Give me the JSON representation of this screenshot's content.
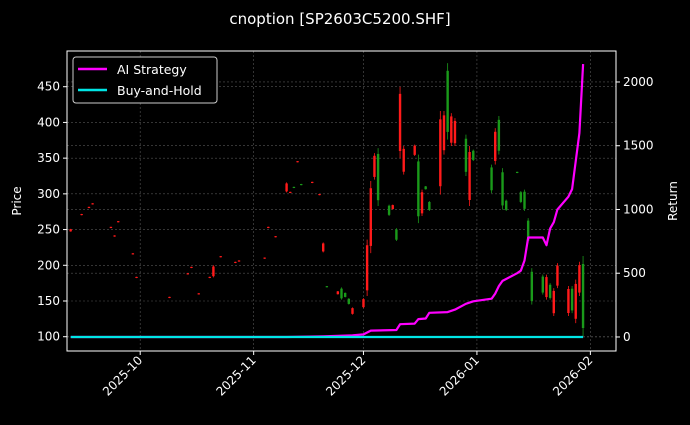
{
  "chart_data": {
    "type": "candlestick+line",
    "title": "cnoption [SP2603C5200.SHF]",
    "xlabel": "",
    "ylabel": "Price",
    "ylabel_right": "Return",
    "xlim": [
      "2025-09-11",
      "2026-02-08"
    ],
    "ylim": [
      80,
      500
    ],
    "ylim_right": [
      -110,
      2243
    ],
    "x_ticks": [
      "2025-10-01",
      "2025-11-01",
      "2025-12-01",
      "2026-01-01",
      "2026-02-01"
    ],
    "x_tick_labels": [
      "2025-10",
      "2025-11",
      "2025-12",
      "2026-01",
      "2026-02"
    ],
    "y_ticks": [
      100,
      150,
      200,
      250,
      300,
      350,
      400,
      450
    ],
    "y_ticks_right": [
      0,
      500,
      1000,
      1500,
      2000
    ],
    "grid": true,
    "legend_position": "upper-left",
    "colors": {
      "background": "#000000",
      "up": "#ff1a1a",
      "down": "#1a9a1a",
      "strategy": "#ff00ff",
      "buy_hold": "#00e5e5",
      "axes": "#ffffff",
      "grid": "#555555"
    },
    "candles": [
      {
        "date": "2025-09-12",
        "high": 251,
        "low": 247,
        "color": "up"
      },
      {
        "date": "2025-09-15",
        "high": 272,
        "low": 270,
        "color": "up"
      },
      {
        "date": "2025-09-17",
        "high": 282,
        "low": 280,
        "color": "up"
      },
      {
        "date": "2025-09-18",
        "high": 287,
        "low": 285,
        "color": "up"
      },
      {
        "date": "2025-09-23",
        "high": 254,
        "low": 252,
        "color": "up"
      },
      {
        "date": "2025-09-24",
        "high": 242,
        "low": 240,
        "color": "up"
      },
      {
        "date": "2025-09-25",
        "high": 262,
        "low": 260,
        "color": "up"
      },
      {
        "date": "2025-09-29",
        "high": 217,
        "low": 215,
        "color": "up"
      },
      {
        "date": "2025-09-30",
        "high": 184,
        "low": 182,
        "color": "up"
      },
      {
        "date": "2025-10-09",
        "high": 156,
        "low": 154,
        "color": "up"
      },
      {
        "date": "2025-10-14",
        "high": 189,
        "low": 187,
        "color": "up"
      },
      {
        "date": "2025-10-15",
        "high": 198,
        "low": 196,
        "color": "up"
      },
      {
        "date": "2025-10-17",
        "high": 161,
        "low": 159,
        "color": "up"
      },
      {
        "date": "2025-10-20",
        "high": 184,
        "low": 182,
        "color": "up"
      },
      {
        "date": "2025-10-21",
        "high": 200,
        "low": 183,
        "color": "up"
      },
      {
        "date": "2025-10-23",
        "high": 213,
        "low": 211,
        "color": "up"
      },
      {
        "date": "2025-10-27",
        "high": 205,
        "low": 203,
        "color": "up"
      },
      {
        "date": "2025-10-28",
        "high": 207,
        "low": 205,
        "color": "up"
      },
      {
        "date": "2025-11-04",
        "high": 211,
        "low": 209,
        "color": "up"
      },
      {
        "date": "2025-11-05",
        "high": 254,
        "low": 252,
        "color": "up"
      },
      {
        "date": "2025-11-07",
        "high": 241,
        "low": 239,
        "color": "up"
      },
      {
        "date": "2025-11-10",
        "high": 316,
        "low": 302,
        "color": "up"
      },
      {
        "date": "2025-11-11",
        "high": 303,
        "low": 301,
        "color": "up"
      },
      {
        "date": "2025-11-12",
        "high": 310,
        "low": 308,
        "color": "down"
      },
      {
        "date": "2025-11-13",
        "high": 346,
        "low": 344,
        "color": "up"
      },
      {
        "date": "2025-11-14",
        "high": 314,
        "low": 312,
        "color": "down"
      },
      {
        "date": "2025-11-17",
        "high": 317,
        "low": 315,
        "color": "up"
      },
      {
        "date": "2025-11-19",
        "high": 300,
        "low": 298,
        "color": "up"
      },
      {
        "date": "2025-11-20",
        "high": 232,
        "low": 218,
        "color": "up"
      },
      {
        "date": "2025-11-21",
        "high": 171,
        "low": 169,
        "color": "down"
      },
      {
        "date": "2025-11-24",
        "high": 164,
        "low": 159,
        "color": "up"
      },
      {
        "date": "2025-11-25",
        "high": 169,
        "low": 152,
        "color": "down"
      },
      {
        "date": "2025-11-26",
        "high": 162,
        "low": 155,
        "color": "down"
      },
      {
        "date": "2025-11-27",
        "high": 154,
        "low": 145,
        "color": "down"
      },
      {
        "date": "2025-11-28",
        "high": 141,
        "low": 131,
        "color": "up"
      },
      {
        "date": "2025-12-01",
        "high": 154,
        "low": 140,
        "color": "up"
      },
      {
        "date": "2025-12-02",
        "high": 236,
        "low": 157,
        "color": "up"
      },
      {
        "date": "2025-12-03",
        "high": 318,
        "low": 217,
        "color": "up"
      },
      {
        "date": "2025-12-04",
        "high": 357,
        "low": 320,
        "color": "up"
      },
      {
        "date": "2025-12-05",
        "high": 364,
        "low": 283,
        "color": "down"
      },
      {
        "date": "2025-12-08",
        "high": 285,
        "low": 269,
        "color": "down"
      },
      {
        "date": "2025-12-09",
        "high": 285,
        "low": 278,
        "color": "up"
      },
      {
        "date": "2025-12-10",
        "high": 252,
        "low": 234,
        "color": "down"
      },
      {
        "date": "2025-12-11",
        "high": 450,
        "low": 350,
        "color": "up"
      },
      {
        "date": "2025-12-12",
        "high": 367,
        "low": 327,
        "color": "up"
      },
      {
        "date": "2025-12-15",
        "high": 369,
        "low": 353,
        "color": "up"
      },
      {
        "date": "2025-12-16",
        "high": 355,
        "low": 259,
        "color": "down"
      },
      {
        "date": "2025-12-17",
        "high": 306,
        "low": 269,
        "color": "up"
      },
      {
        "date": "2025-12-18",
        "high": 311,
        "low": 306,
        "color": "down"
      },
      {
        "date": "2025-12-19",
        "high": 290,
        "low": 276,
        "color": "down"
      },
      {
        "date": "2025-12-22",
        "high": 416,
        "low": 299,
        "color": "up"
      },
      {
        "date": "2025-12-23",
        "high": 416,
        "low": 355,
        "color": "up"
      },
      {
        "date": "2025-12-24",
        "high": 483,
        "low": 376,
        "color": "down"
      },
      {
        "date": "2025-12-25",
        "high": 413,
        "low": 367,
        "color": "up"
      },
      {
        "date": "2025-12-26",
        "high": 406,
        "low": 367,
        "color": "up"
      },
      {
        "date": "2025-12-29",
        "high": 383,
        "low": 325,
        "color": "down"
      },
      {
        "date": "2025-12-30",
        "high": 367,
        "low": 283,
        "color": "up"
      },
      {
        "date": "2025-12-31",
        "high": 362,
        "low": 346,
        "color": "down"
      },
      {
        "date": "2026-01-05",
        "high": 341,
        "low": 301,
        "color": "down"
      },
      {
        "date": "2026-01-06",
        "high": 392,
        "low": 341,
        "color": "up"
      },
      {
        "date": "2026-01-07",
        "high": 409,
        "low": 355,
        "color": "down"
      },
      {
        "date": "2026-01-08",
        "high": 336,
        "low": 278,
        "color": "down"
      },
      {
        "date": "2026-01-09",
        "high": 292,
        "low": 276,
        "color": "down"
      },
      {
        "date": "2026-01-12",
        "high": 331,
        "low": 329,
        "color": "down"
      },
      {
        "date": "2026-01-13",
        "high": 304,
        "low": 287,
        "color": "down"
      },
      {
        "date": "2026-01-14",
        "high": 306,
        "low": 276,
        "color": "down"
      },
      {
        "date": "2026-01-15",
        "high": 266,
        "low": 231,
        "color": "down"
      },
      {
        "date": "2026-01-16",
        "high": 196,
        "low": 145,
        "color": "down"
      },
      {
        "date": "2026-01-19",
        "high": 187,
        "low": 159,
        "color": "down"
      },
      {
        "date": "2026-01-20",
        "high": 187,
        "low": 152,
        "color": "up"
      },
      {
        "date": "2026-01-21",
        "high": 175,
        "low": 152,
        "color": "down"
      },
      {
        "date": "2026-01-22",
        "high": 168,
        "low": 129,
        "color": "up"
      },
      {
        "date": "2026-01-23",
        "high": 203,
        "low": 168,
        "color": "up"
      },
      {
        "date": "2026-01-26",
        "high": 171,
        "low": 129,
        "color": "up"
      },
      {
        "date": "2026-01-27",
        "high": 171,
        "low": 133,
        "color": "down"
      },
      {
        "date": "2026-01-28",
        "high": 180,
        "low": 119,
        "color": "up"
      },
      {
        "date": "2026-01-29",
        "high": 205,
        "low": 157,
        "color": "up"
      },
      {
        "date": "2026-01-30",
        "high": 213,
        "low": 101,
        "color": "down"
      }
    ],
    "series": [
      {
        "name": "AI Strategy",
        "axis": "right",
        "points": [
          [
            "2025-09-12",
            0
          ],
          [
            "2025-11-10",
            0
          ],
          [
            "2025-11-20",
            5
          ],
          [
            "2025-11-28",
            12
          ],
          [
            "2025-12-01",
            20
          ],
          [
            "2025-12-03",
            50
          ],
          [
            "2025-12-10",
            55
          ],
          [
            "2025-12-11",
            100
          ],
          [
            "2025-12-15",
            105
          ],
          [
            "2025-12-16",
            140
          ],
          [
            "2025-12-18",
            145
          ],
          [
            "2025-12-19",
            190
          ],
          [
            "2025-12-24",
            195
          ],
          [
            "2025-12-26",
            215
          ],
          [
            "2025-12-29",
            260
          ],
          [
            "2025-12-31",
            280
          ],
          [
            "2026-01-05",
            300
          ],
          [
            "2026-01-06",
            340
          ],
          [
            "2026-01-07",
            400
          ],
          [
            "2026-01-08",
            440
          ],
          [
            "2026-01-12",
            500
          ],
          [
            "2026-01-13",
            520
          ],
          [
            "2026-01-14",
            600
          ],
          [
            "2026-01-15",
            780
          ],
          [
            "2026-01-19",
            780
          ],
          [
            "2026-01-20",
            720
          ],
          [
            "2026-01-21",
            850
          ],
          [
            "2026-01-22",
            900
          ],
          [
            "2026-01-23",
            1000
          ],
          [
            "2026-01-26",
            1100
          ],
          [
            "2026-01-27",
            1160
          ],
          [
            "2026-01-29",
            1600
          ],
          [
            "2026-01-30",
            2140
          ]
        ]
      },
      {
        "name": "Buy-and-Hold",
        "axis": "right",
        "points": [
          [
            "2025-09-12",
            0
          ],
          [
            "2026-01-30",
            0
          ]
        ]
      }
    ]
  }
}
